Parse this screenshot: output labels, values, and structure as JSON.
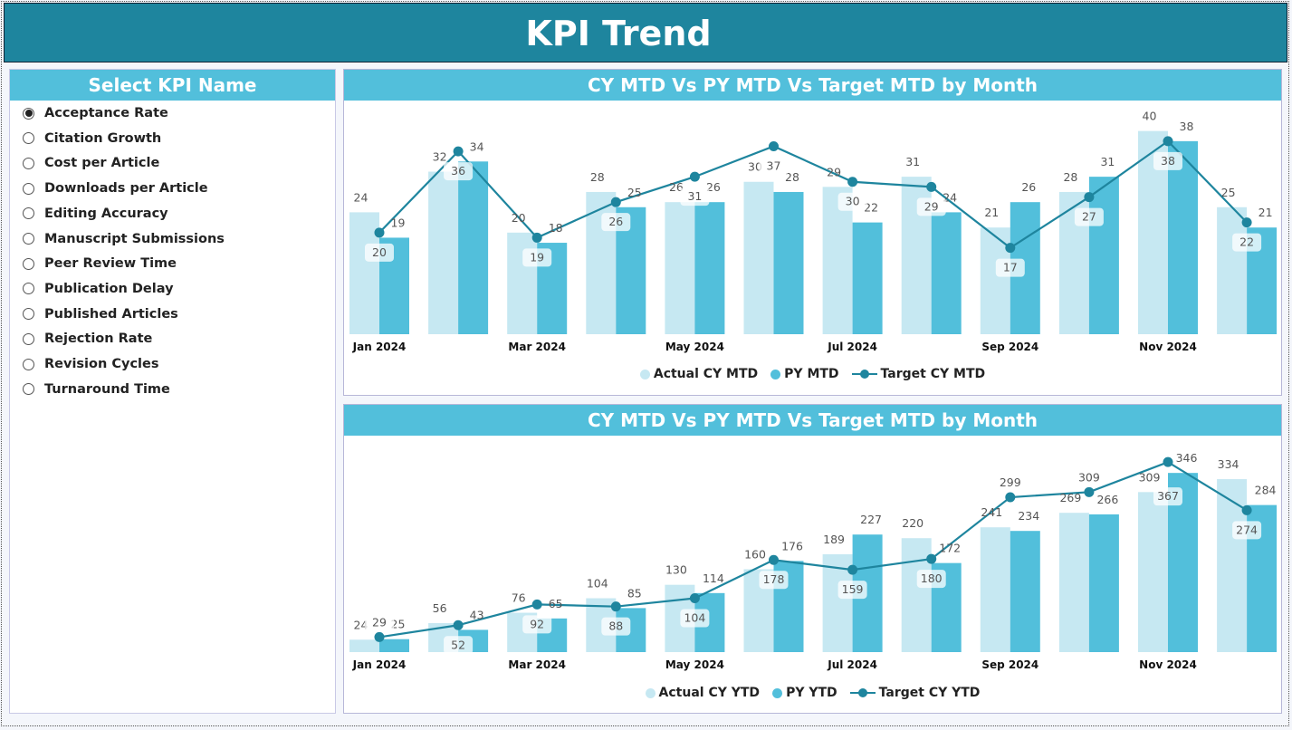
{
  "header": {
    "title": "KPI Trend"
  },
  "sidebar": {
    "title": "Select KPI Name",
    "selected": 0,
    "items": [
      "Acceptance Rate",
      "Citation Growth",
      "Cost per Article",
      "Downloads per Article",
      "Editing Accuracy",
      "Manuscript Submissions",
      "Peer Review Time",
      "Publication Delay",
      "Published Articles",
      "Rejection Rate",
      "Revision Cycles",
      "Turnaround Time"
    ]
  },
  "colors": {
    "header": "#1e859e",
    "title_bar": "#52bfdb",
    "actual": "#c6e8f2",
    "py": "#52bfdb",
    "target": "#1e859e"
  },
  "chart_data": [
    {
      "type": "bar",
      "title": "CY MTD Vs PY MTD Vs Target MTD by Month",
      "x_ticks": [
        "Jan 2024",
        "Mar 2024",
        "May 2024",
        "Jul 2024",
        "Sep 2024",
        "Nov 2024"
      ],
      "ylim": [
        0,
        46
      ],
      "legend": "bottom",
      "series": [
        {
          "name": "Actual CY MTD",
          "kind": "bar",
          "values": [
            24,
            32,
            20,
            28,
            26,
            30,
            29,
            31,
            21,
            28,
            40,
            25
          ]
        },
        {
          "name": "PY MTD",
          "kind": "bar",
          "values": [
            19,
            34,
            18,
            25,
            26,
            28,
            22,
            24,
            26,
            31,
            38,
            21
          ]
        },
        {
          "name": "Target CY MTD",
          "kind": "line",
          "values": [
            20,
            36,
            19,
            26,
            31,
            37,
            30,
            29,
            17,
            27,
            38,
            22
          ]
        }
      ]
    },
    {
      "type": "bar",
      "title": "CY MTD Vs PY MTD Vs Target MTD by Month",
      "x_ticks": [
        "Jan 2024",
        "Mar 2024",
        "May 2024",
        "Jul 2024",
        "Sep 2024",
        "Nov 2024"
      ],
      "ylim": [
        0,
        418
      ],
      "legend": "bottom",
      "series": [
        {
          "name": "Actual CY YTD",
          "kind": "bar",
          "values": [
            24,
            56,
            76,
            104,
            130,
            160,
            189,
            220,
            241,
            269,
            309,
            334
          ]
        },
        {
          "name": "PY YTD",
          "kind": "bar",
          "values": [
            25,
            43,
            65,
            85,
            114,
            176,
            227,
            172,
            234,
            266,
            346,
            284
          ]
        },
        {
          "name": "Target CY YTD",
          "kind": "line",
          "values": [
            29,
            52,
            92,
            88,
            104,
            178,
            159,
            180,
            299,
            309,
            367,
            274
          ]
        }
      ]
    }
  ]
}
